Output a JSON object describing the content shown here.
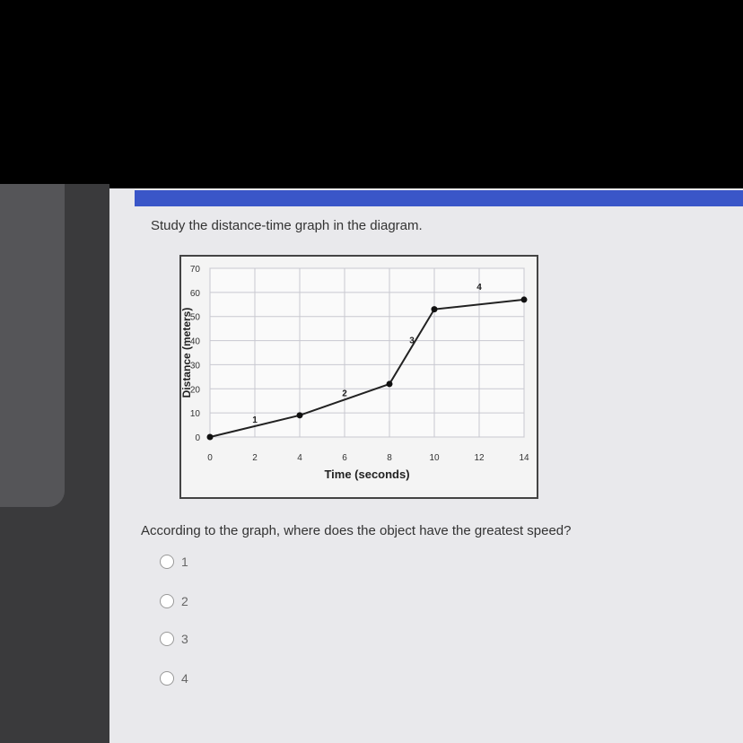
{
  "prompt": "Study the distance-time graph in the diagram.",
  "question": "According to the graph, where does the object have the greatest speed?",
  "options": [
    "1",
    "2",
    "3",
    "4"
  ],
  "chart_data": {
    "type": "line",
    "xlabel": "Time (seconds)",
    "ylabel": "Distance (meters)",
    "xlim": [
      0,
      14
    ],
    "ylim": [
      0,
      70
    ],
    "xticks": [
      "0",
      "2",
      "4",
      "6",
      "8",
      "10",
      "12",
      "14"
    ],
    "yticks": [
      "0",
      "10",
      "20",
      "30",
      "40",
      "50",
      "60",
      "70"
    ],
    "grid": true,
    "x": [
      0,
      4,
      8,
      10,
      14
    ],
    "y": [
      0,
      9,
      22,
      53,
      57
    ],
    "segment_labels": [
      {
        "label": "1",
        "x": 2,
        "y": 6
      },
      {
        "label": "2",
        "x": 6,
        "y": 17
      },
      {
        "label": "3",
        "x": 9,
        "y": 39
      },
      {
        "label": "4",
        "x": 12,
        "y": 61
      }
    ]
  }
}
